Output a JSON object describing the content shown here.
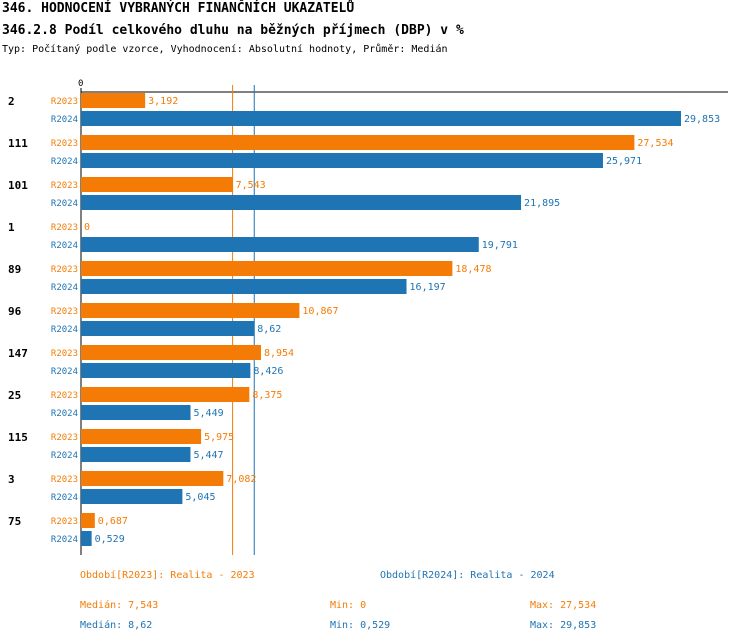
{
  "header": {
    "title": "346. HODNOCENÍ VYBRANÝCH FINANČNÍCH UKAZATELŮ",
    "subtitle": "346.2.8 Podíl celkového dluhu na běžných příjmech (DBP) v %",
    "meta": "Typ: Počítaný podle vzorce, Vyhodnocení: Absolutní hodnoty, Průměr: Medián"
  },
  "colors": {
    "r2023": "#f47c06",
    "r2024": "#1f74b4",
    "axis": "#000000"
  },
  "chart_data": {
    "type": "bar",
    "orientation": "horizontal",
    "x_tick_label": "0",
    "xlim": [
      0,
      29.853
    ],
    "categories": [
      "2",
      "111",
      "101",
      "1",
      "89",
      "96",
      "147",
      "25",
      "115",
      "3",
      "75"
    ],
    "series": [
      {
        "name": "R2023",
        "values": [
          3.192,
          27.534,
          7.543,
          0,
          18.478,
          10.867,
          8.954,
          8.375,
          5.975,
          7.082,
          0.687
        ],
        "labels": [
          "3,192",
          "27,534",
          "7,543",
          "0",
          "18,478",
          "10,867",
          "8,954",
          "8,375",
          "5,975",
          "7,082",
          "0,687"
        ]
      },
      {
        "name": "R2024",
        "values": [
          29.853,
          25.971,
          21.895,
          19.791,
          16.197,
          8.62,
          8.426,
          5.449,
          5.447,
          5.045,
          0.529
        ],
        "labels": [
          "29,853",
          "25,971",
          "21,895",
          "19,791",
          "16,197",
          "8,62",
          "8,426",
          "5,449",
          "5,447",
          "5,045",
          "0,529"
        ]
      }
    ],
    "median_lines": [
      {
        "series": "R2023",
        "value": 7.543
      },
      {
        "series": "R2024",
        "value": 8.62
      }
    ]
  },
  "footer": {
    "legend_2023": "Období[R2023]: Realita - 2023",
    "legend_2024": "Období[R2024]: Realita - 2024",
    "median_2023": "Medián: 7,543",
    "min_2023": "Min: 0",
    "max_2023": "Max: 27,534",
    "median_2024": "Medián: 8,62",
    "min_2024": "Min: 0,529",
    "max_2024": "Max: 29,853"
  }
}
